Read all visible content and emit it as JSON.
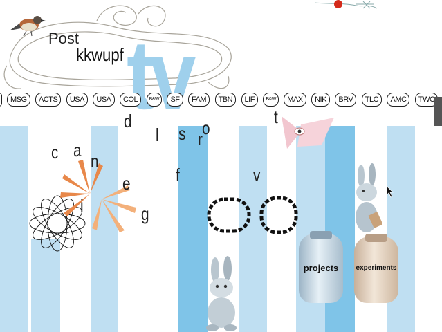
{
  "header": {
    "post_label": "Post",
    "sub_label": "kkwupf",
    "logo_text": "tv"
  },
  "channels": [
    "MSG",
    "ACTS",
    "USA",
    "USA",
    "COL",
    "B&W",
    "SF",
    "FAM",
    "TBN",
    "LIF",
    "B&W",
    "MAX",
    "NIK",
    "BRV",
    "TLC",
    "AMC",
    "TWC"
  ],
  "scattered_letters": [
    "c",
    "a",
    "n",
    "i",
    "e",
    "g",
    "d",
    "l",
    "s",
    "r",
    "o",
    "f",
    "v",
    "t"
  ],
  "jars": {
    "projects_label": "projects",
    "experiments_label": "experiments"
  },
  "colors": {
    "stripe_light": "#bfdff2",
    "stripe_dark": "#7fc4e8",
    "logo_blue": "#9fd0ec",
    "sunburst": "#e8884a"
  }
}
